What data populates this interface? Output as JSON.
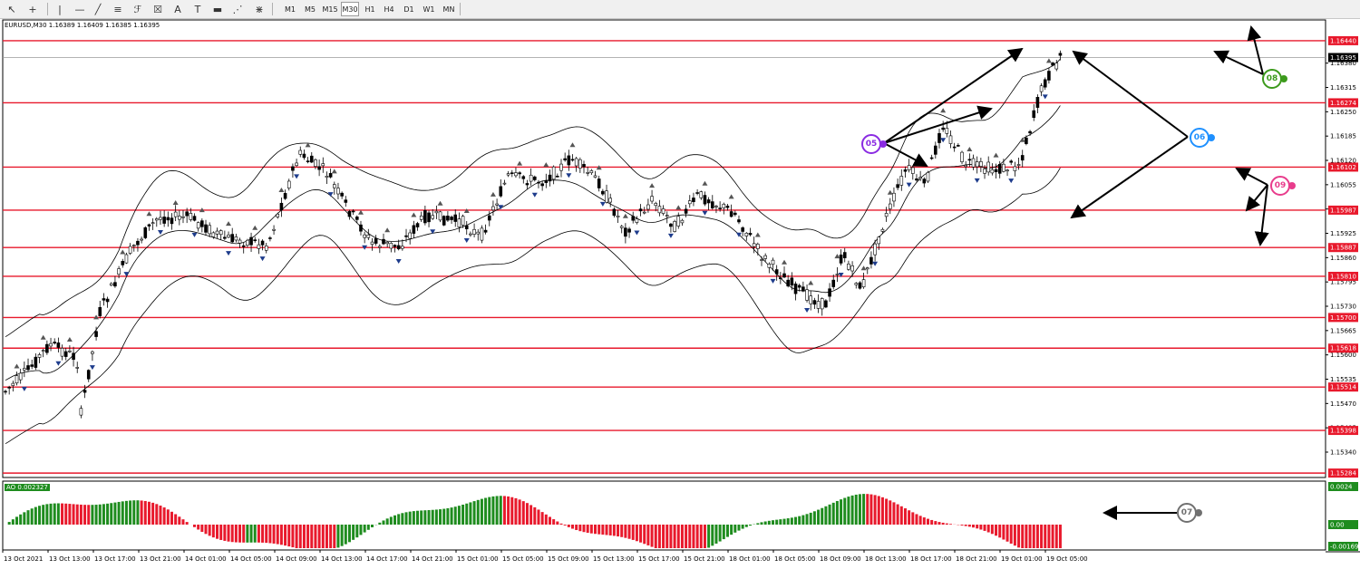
{
  "toolbar": {
    "tools": [
      {
        "name": "cursor-tool",
        "glyph": "↖"
      },
      {
        "name": "crosshair-tool",
        "glyph": "+"
      },
      {
        "name": "vertical-line-tool",
        "glyph": "|"
      },
      {
        "name": "horizontal-line-tool",
        "glyph": "—"
      },
      {
        "name": "trendline-tool",
        "glyph": "╱"
      },
      {
        "name": "channel-tool",
        "glyph": "≡"
      },
      {
        "name": "fibonacci-tool",
        "glyph": "ℱ"
      },
      {
        "name": "gann-tool",
        "glyph": "☒"
      },
      {
        "name": "text-tool",
        "glyph": "A"
      },
      {
        "name": "text-label-tool",
        "glyph": "T"
      },
      {
        "name": "rectangle-tool",
        "glyph": "▬"
      },
      {
        "name": "fibo-fan-tool",
        "glyph": "⋰"
      },
      {
        "name": "pitchfork-tool",
        "glyph": "⋇"
      },
      {
        "name": "arrows-tool",
        "glyph": "➹"
      }
    ],
    "timeframes": [
      "M1",
      "M5",
      "M15",
      "M30",
      "H1",
      "H4",
      "D1",
      "W1",
      "MN"
    ],
    "active_timeframe": "M30"
  },
  "header": {
    "symbol_info": "EURUSD,M30  1.16389 1.16409 1.16385 1.16395"
  },
  "price_axis": {
    "labels": [
      "1.16380",
      "1.16315",
      "1.16250",
      "1.16185",
      "1.16120",
      "1.16055",
      "1.15990",
      "1.15925",
      "1.15860",
      "1.15795",
      "1.15730",
      "1.15665",
      "1.15600",
      "1.15535",
      "1.15470",
      "1.15405",
      "1.15340"
    ],
    "current_price": "1.16395",
    "level_labels": [
      "1.16440",
      "1.16274",
      "1.16102",
      "1.15987",
      "1.15887",
      "1.15810",
      "1.15700",
      "1.15618",
      "1.15514",
      "1.15398",
      "1.15284"
    ],
    "level_color": "#e8192c"
  },
  "time_axis": {
    "labels": [
      "13 Oct 2021",
      "13 Oct 13:00",
      "13 Oct 17:00",
      "13 Oct 21:00",
      "14 Oct 01:00",
      "14 Oct 05:00",
      "14 Oct 09:00",
      "14 Oct 13:00",
      "14 Oct 17:00",
      "14 Oct 21:00",
      "15 Oct 01:00",
      "15 Oct 05:00",
      "15 Oct 09:00",
      "15 Oct 13:00",
      "15 Oct 17:00",
      "15 Oct 21:00",
      "18 Oct 01:00",
      "18 Oct 05:00",
      "18 Oct 09:00",
      "18 Oct 13:00",
      "18 Oct 17:00",
      "18 Oct 21:00",
      "19 Oct 01:00",
      "19 Oct 05:00"
    ]
  },
  "oscillator": {
    "name": "AO",
    "value": "0.002327",
    "axis_labels": [
      "0.0024",
      "0.00",
      "-0.001699"
    ],
    "up_color": "#1e8c1e",
    "down_color": "#e8192c"
  },
  "callouts": [
    {
      "id": "05",
      "color": "#8a2be2",
      "name": "callout-05"
    },
    {
      "id": "06",
      "color": "#1e90ff",
      "name": "callout-06"
    },
    {
      "id": "07",
      "color": "#707070",
      "name": "callout-07"
    },
    {
      "id": "08",
      "color": "#3c9a1c",
      "name": "callout-08"
    },
    {
      "id": "09",
      "color": "#e83c8c",
      "name": "callout-09"
    }
  ]
}
